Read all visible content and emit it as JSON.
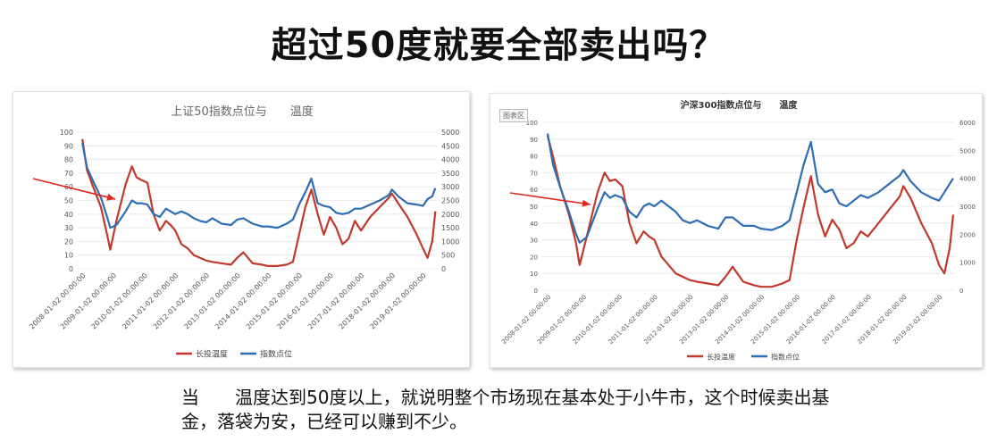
{
  "headline": "超过50度就要全部卖出吗？",
  "caption": "当　　温度达到50度以上，就说明整个市场现在基本处于小牛市，这个时候卖出基金，落袋为安，已经可以赚到不少。",
  "chart_data": [
    {
      "type": "line",
      "title": "上证50指数点位与　　温度",
      "categories": [
        "2008-01-02 00:00:00",
        "2009-01-02 00:00:00",
        "2010-01-02 00:00:00",
        "2011-01-02 00:00:00",
        "2012-01-02 00:00:00",
        "2013-01-02 00:00:00",
        "2014-01-02 00:00:00",
        "2015-01-02 00:00:00",
        "2016-01-02 00:00:00",
        "2017-01-02 00:00:00",
        "2018-01-02 00:00:00",
        "2019-01-02 00:00:00"
      ],
      "ylim": [
        0,
        100
      ],
      "yticks": [
        0,
        10,
        20,
        30,
        40,
        50,
        60,
        70,
        80,
        90,
        100
      ],
      "y2lim": [
        0,
        5000
      ],
      "y2ticks": [
        0,
        500,
        1000,
        1500,
        2000,
        2500,
        3000,
        3500,
        4000,
        4500,
        5000
      ],
      "grid": true,
      "legend": "bottom",
      "series": [
        {
          "name": "长投温度",
          "color": "#c0392b",
          "axis": "left",
          "x": [
            2008.0,
            2008.15,
            2008.35,
            2008.6,
            2008.8,
            2008.9,
            2009.1,
            2009.4,
            2009.6,
            2009.75,
            2009.9,
            2010.1,
            2010.3,
            2010.5,
            2010.7,
            2010.85,
            2011.0,
            2011.2,
            2011.4,
            2011.6,
            2011.8,
            2012.0,
            2012.2,
            2012.5,
            2012.8,
            2013.0,
            2013.2,
            2013.5,
            2013.8,
            2014.0,
            2014.3,
            2014.6,
            2014.8,
            2015.0,
            2015.2,
            2015.4,
            2015.6,
            2015.8,
            2016.0,
            2016.2,
            2016.4,
            2016.6,
            2016.8,
            2017.0,
            2017.3,
            2017.6,
            2017.9,
            2018.0,
            2018.2,
            2018.5,
            2018.8,
            2019.0,
            2019.15,
            2019.3,
            2019.4
          ],
          "y": [
            95,
            72,
            60,
            45,
            25,
            14,
            35,
            62,
            75,
            67,
            65,
            63,
            40,
            28,
            35,
            32,
            28,
            18,
            15,
            10,
            8,
            6,
            5,
            4,
            3,
            8,
            12,
            4,
            3,
            2,
            2,
            3,
            5,
            25,
            45,
            58,
            40,
            25,
            38,
            30,
            18,
            22,
            35,
            28,
            38,
            45,
            52,
            55,
            48,
            38,
            25,
            15,
            8,
            20,
            42
          ]
        },
        {
          "name": "指数点位",
          "color": "#2e6db4",
          "axis": "right",
          "x": [
            2008.0,
            2008.15,
            2008.35,
            2008.6,
            2008.8,
            2008.9,
            2009.1,
            2009.4,
            2009.6,
            2009.75,
            2009.9,
            2010.1,
            2010.3,
            2010.5,
            2010.7,
            2010.85,
            2011.0,
            2011.2,
            2011.4,
            2011.6,
            2011.8,
            2012.0,
            2012.2,
            2012.5,
            2012.8,
            2013.0,
            2013.2,
            2013.5,
            2013.8,
            2014.0,
            2014.3,
            2014.6,
            2014.8,
            2015.0,
            2015.2,
            2015.4,
            2015.6,
            2015.8,
            2016.0,
            2016.2,
            2016.4,
            2016.6,
            2016.8,
            2017.0,
            2017.3,
            2017.6,
            2017.9,
            2018.0,
            2018.2,
            2018.5,
            2018.8,
            2019.0,
            2019.15,
            2019.3,
            2019.4
          ],
          "y": [
            4600,
            3700,
            3200,
            2600,
            1900,
            1500,
            1600,
            2100,
            2500,
            2400,
            2400,
            2350,
            2000,
            1900,
            2200,
            2100,
            2000,
            2100,
            2000,
            1850,
            1750,
            1700,
            1850,
            1650,
            1600,
            1800,
            1850,
            1650,
            1550,
            1550,
            1500,
            1650,
            1800,
            2350,
            2800,
            3300,
            2400,
            2300,
            2250,
            2050,
            2000,
            2050,
            2200,
            2200,
            2350,
            2500,
            2700,
            2900,
            2650,
            2400,
            2350,
            2300,
            2550,
            2650,
            2950
          ]
        }
      ]
    },
    {
      "type": "line",
      "title": "沪深300指数点位与　　温度",
      "chart_button": "图表区",
      "categories": [
        "2008-01-02 00:00:00",
        "2009-01-02 00:00:00",
        "2010-01-02 00:00:00",
        "2011-01-02 00:00:00",
        "2012-01-02 00:00:00",
        "2013-01-02 00:00:00",
        "2014-01-02 00:00:00",
        "2015-01-02 00:00:00",
        "2016-01-02 00:00:00",
        "2017-01-02 00:00:00",
        "2018-01-02 00:00:00",
        "2019-01-02 00:00:00"
      ],
      "ylim": [
        0,
        100
      ],
      "yticks": [
        0,
        10,
        20,
        30,
        40,
        50,
        60,
        70,
        80,
        90,
        100
      ],
      "y2lim": [
        0,
        6000
      ],
      "y2ticks": [
        0,
        1000,
        2000,
        3000,
        4000,
        5000,
        6000
      ],
      "grid": true,
      "legend": "bottom",
      "series": [
        {
          "name": "长投温度",
          "color": "#c0392b",
          "axis": "left",
          "x": [
            2008.0,
            2008.15,
            2008.35,
            2008.6,
            2008.8,
            2008.9,
            2009.1,
            2009.4,
            2009.6,
            2009.75,
            2009.9,
            2010.1,
            2010.3,
            2010.5,
            2010.7,
            2010.85,
            2011.0,
            2011.2,
            2011.4,
            2011.6,
            2011.8,
            2012.0,
            2012.2,
            2012.5,
            2012.8,
            2013.0,
            2013.2,
            2013.5,
            2013.8,
            2014.0,
            2014.3,
            2014.6,
            2014.8,
            2015.0,
            2015.2,
            2015.4,
            2015.6,
            2015.8,
            2016.0,
            2016.2,
            2016.4,
            2016.6,
            2016.8,
            2017.0,
            2017.3,
            2017.6,
            2017.9,
            2018.0,
            2018.2,
            2018.5,
            2018.8,
            2019.0,
            2019.15,
            2019.3,
            2019.4
          ],
          "y": [
            92,
            80,
            62,
            45,
            28,
            15,
            32,
            58,
            70,
            65,
            66,
            62,
            40,
            28,
            35,
            32,
            30,
            20,
            15,
            10,
            8,
            6,
            5,
            4,
            3,
            8,
            14,
            5,
            3,
            2,
            2,
            4,
            6,
            30,
            50,
            68,
            45,
            32,
            42,
            36,
            25,
            28,
            35,
            32,
            40,
            48,
            56,
            62,
            55,
            40,
            28,
            15,
            10,
            25,
            45
          ]
        },
        {
          "name": "指数点位",
          "color": "#2e6db4",
          "axis": "right",
          "x": [
            2008.0,
            2008.15,
            2008.35,
            2008.6,
            2008.8,
            2008.9,
            2009.1,
            2009.4,
            2009.6,
            2009.75,
            2009.9,
            2010.1,
            2010.3,
            2010.5,
            2010.7,
            2010.85,
            2011.0,
            2011.2,
            2011.4,
            2011.6,
            2011.8,
            2012.0,
            2012.2,
            2012.5,
            2012.8,
            2013.0,
            2013.2,
            2013.5,
            2013.8,
            2014.0,
            2014.3,
            2014.6,
            2014.8,
            2015.0,
            2015.2,
            2015.4,
            2015.6,
            2015.8,
            2016.0,
            2016.2,
            2016.4,
            2016.6,
            2016.8,
            2017.0,
            2017.3,
            2017.6,
            2017.9,
            2018.0,
            2018.2,
            2018.5,
            2018.8,
            2019.0,
            2019.15,
            2019.3,
            2019.4
          ],
          "y": [
            5600,
            4500,
            3700,
            2800,
            2000,
            1700,
            1900,
            2900,
            3500,
            3300,
            3400,
            3300,
            2800,
            2600,
            3000,
            3100,
            3000,
            3200,
            3000,
            2800,
            2500,
            2400,
            2500,
            2300,
            2200,
            2600,
            2600,
            2300,
            2300,
            2200,
            2150,
            2300,
            2500,
            3500,
            4500,
            5300,
            3800,
            3500,
            3600,
            3100,
            3000,
            3200,
            3400,
            3300,
            3500,
            3800,
            4100,
            4300,
            3900,
            3500,
            3300,
            3200,
            3500,
            3800,
            4000
          ]
        }
      ]
    }
  ]
}
